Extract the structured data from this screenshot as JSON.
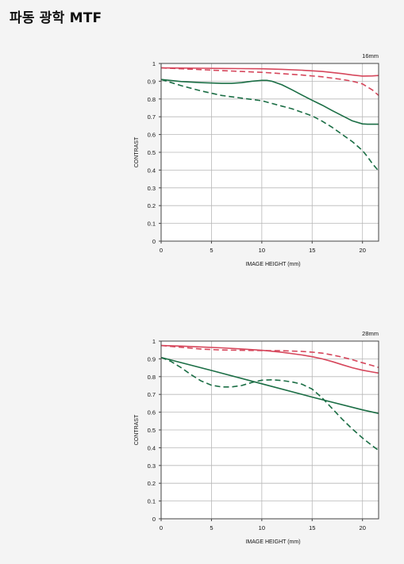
{
  "page": {
    "title": "파동 광학 MTF"
  },
  "colors": {
    "red": "#d6475c",
    "green": "#1b6e45",
    "grid": "#b8b8b8",
    "axis": "#444444"
  },
  "chart_data": [
    {
      "type": "line",
      "title": "16mm",
      "xlabel": "IMAGE HEIGHT (mm)",
      "ylabel": "CONTRAST",
      "xlim": [
        0,
        21.6
      ],
      "ylim": [
        0,
        1
      ],
      "xticks": [
        0,
        5,
        10,
        15,
        20
      ],
      "yticks": [
        0,
        0.1,
        0.2,
        0.3,
        0.4,
        0.5,
        0.6,
        0.7,
        0.8,
        0.9,
        1
      ],
      "grid": true,
      "series": [
        {
          "color": "red",
          "dash": false,
          "x": [
            0,
            2,
            4,
            6,
            8,
            10,
            12,
            14,
            16,
            18,
            19,
            20,
            21,
            21.6
          ],
          "y": [
            0.975,
            0.974,
            0.973,
            0.972,
            0.971,
            0.97,
            0.967,
            0.962,
            0.955,
            0.943,
            0.935,
            0.929,
            0.93,
            0.932
          ]
        },
        {
          "color": "red",
          "dash": true,
          "x": [
            0,
            2,
            4,
            6,
            8,
            10,
            12,
            14,
            16,
            18,
            19,
            20,
            21,
            21.6
          ],
          "y": [
            0.975,
            0.97,
            0.965,
            0.96,
            0.955,
            0.95,
            0.943,
            0.935,
            0.925,
            0.91,
            0.9,
            0.885,
            0.85,
            0.82
          ]
        },
        {
          "color": "green",
          "dash": false,
          "x": [
            0,
            2,
            4,
            6,
            7,
            8,
            9,
            10,
            10.5,
            11,
            12,
            13,
            14,
            15,
            16,
            17,
            18,
            19,
            20,
            20.5,
            21,
            21.6
          ],
          "y": [
            0.91,
            0.898,
            0.892,
            0.888,
            0.888,
            0.892,
            0.9,
            0.905,
            0.905,
            0.9,
            0.88,
            0.852,
            0.822,
            0.793,
            0.765,
            0.735,
            0.706,
            0.677,
            0.66,
            0.658,
            0.658,
            0.658
          ]
        },
        {
          "color": "green",
          "dash": true,
          "x": [
            0,
            2,
            4,
            6,
            8,
            10,
            11,
            12,
            13,
            14,
            15,
            16,
            17,
            18,
            19,
            20,
            20.5,
            21,
            21.6
          ],
          "y": [
            0.91,
            0.875,
            0.845,
            0.82,
            0.805,
            0.79,
            0.775,
            0.76,
            0.745,
            0.725,
            0.705,
            0.675,
            0.64,
            0.6,
            0.56,
            0.51,
            0.475,
            0.435,
            0.395
          ]
        }
      ]
    },
    {
      "type": "line",
      "title": "28mm",
      "xlabel": "IMAGE HEIGHT (mm)",
      "ylabel": "CONTRAST",
      "xlim": [
        0,
        21.6
      ],
      "ylim": [
        0,
        1
      ],
      "xticks": [
        0,
        5,
        10,
        15,
        20
      ],
      "yticks": [
        0,
        0.1,
        0.2,
        0.3,
        0.4,
        0.5,
        0.6,
        0.7,
        0.8,
        0.9,
        1
      ],
      "grid": true,
      "series": [
        {
          "color": "red",
          "dash": false,
          "x": [
            0,
            2,
            4,
            6,
            8,
            10,
            12,
            14,
            15,
            16,
            17,
            18,
            19,
            20,
            21,
            21.6
          ],
          "y": [
            0.975,
            0.972,
            0.967,
            0.962,
            0.956,
            0.948,
            0.937,
            0.922,
            0.912,
            0.9,
            0.885,
            0.867,
            0.85,
            0.836,
            0.826,
            0.82
          ]
        },
        {
          "color": "red",
          "dash": true,
          "x": [
            0,
            2,
            4,
            6,
            8,
            10,
            12,
            14,
            15,
            16,
            17,
            18,
            19,
            20,
            21,
            21.6
          ],
          "y": [
            0.975,
            0.965,
            0.955,
            0.95,
            0.948,
            0.947,
            0.946,
            0.942,
            0.938,
            0.932,
            0.922,
            0.91,
            0.895,
            0.878,
            0.862,
            0.852
          ]
        },
        {
          "color": "green",
          "dash": false,
          "x": [
            0,
            5,
            10,
            15,
            20,
            21.6
          ],
          "y": [
            0.908,
            0.835,
            0.76,
            0.685,
            0.613,
            0.593
          ]
        },
        {
          "color": "green",
          "dash": true,
          "x": [
            0,
            1,
            2,
            3,
            4,
            5,
            6,
            7,
            8,
            9,
            10,
            11,
            12,
            13,
            14,
            15,
            16,
            17,
            18,
            19,
            20,
            21,
            21.6
          ],
          "y": [
            0.908,
            0.885,
            0.85,
            0.81,
            0.775,
            0.752,
            0.742,
            0.742,
            0.75,
            0.767,
            0.78,
            0.782,
            0.778,
            0.77,
            0.757,
            0.73,
            0.68,
            0.62,
            0.56,
            0.505,
            0.455,
            0.41,
            0.385
          ]
        }
      ]
    }
  ]
}
